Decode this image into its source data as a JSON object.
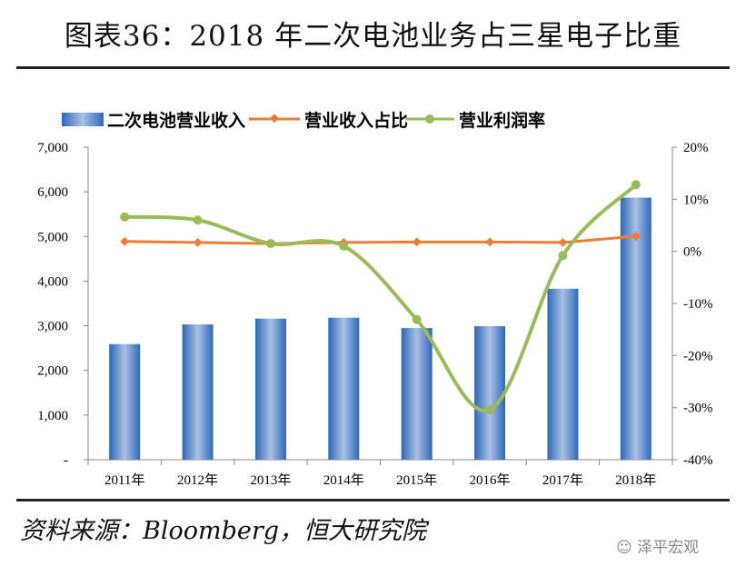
{
  "title": "图表36：2018 年二次电池业务占三星电子比重",
  "source": "资料来源：Bloomberg，恒大研究院",
  "watermark": "泽平宏观",
  "chart_data": {
    "type": "bar",
    "categories": [
      "2011年",
      "2012年",
      "2013年",
      "2014年",
      "2015年",
      "2016年",
      "2017年",
      "2018年"
    ],
    "series": [
      {
        "name": "二次电池营业收入",
        "type": "bar",
        "axis": "left",
        "color": "#3d78c4",
        "values": [
          2590,
          3030,
          3160,
          3180,
          2950,
          2990,
          3830,
          5870
        ]
      },
      {
        "name": "营业收入占比",
        "type": "line",
        "axis": "right",
        "color": "#ed7d31",
        "values": [
          1.9,
          1.7,
          1.5,
          1.7,
          1.8,
          1.8,
          1.7,
          2.9
        ]
      },
      {
        "name": "营业利润率",
        "type": "line",
        "axis": "right",
        "color": "#9bbb59",
        "smooth": true,
        "values": [
          6.6,
          6.0,
          1.5,
          1.0,
          -13.1,
          -30.4,
          -0.8,
          12.8
        ]
      }
    ],
    "left_axis": {
      "ylim": [
        0,
        7000
      ],
      "ticks": [
        "-",
        "1,000",
        "2,000",
        "3,000",
        "4,000",
        "5,000",
        "6,000",
        "7,000"
      ]
    },
    "right_axis": {
      "ylim": [
        -40,
        20
      ],
      "ticks": [
        "-40%",
        "-30%",
        "-20%",
        "-10%",
        "0%",
        "10%",
        "20%"
      ]
    },
    "legend": "top",
    "grid": false
  }
}
